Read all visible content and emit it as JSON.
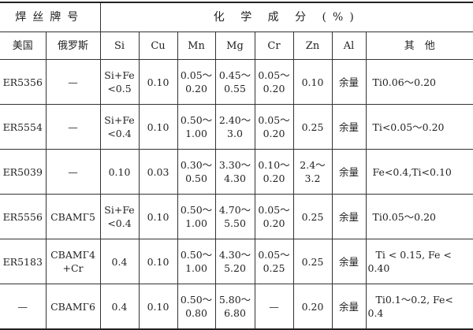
{
  "header": {
    "wire_grade": "焊丝牌号",
    "composition": "化 学 成 分 (%)",
    "columns": [
      "美国",
      "俄罗斯",
      "Si",
      "Cu",
      "Mn",
      "Mg",
      "Cr",
      "Zn",
      "Al",
      "其　他"
    ]
  },
  "rows": [
    [
      "ER5356",
      "—",
      "Si+Fe\n<0.5",
      "0.10",
      "0.05～\n0.20",
      "0.45～\n0.55",
      "0.05～\n0.20",
      "0.10",
      "余量",
      "Ti0.06～0.20"
    ],
    [
      "ER5554",
      "—",
      "Si+Fe\n<0.4",
      "0.10",
      "0.50～\n1.00",
      "2.40～\n3.0",
      "0.05～\n0.20",
      "0.25",
      "余量",
      "Ti<0.05～0.20"
    ],
    [
      "ER5039",
      "—",
      "0.10",
      "0.03",
      "0.30～\n0.50",
      "3.30～\n4.30",
      "0.10～\n0.20",
      "2.4～\n3.2",
      "余量",
      "Fe<0.4,Ti<0.10"
    ],
    [
      "ER5556",
      "CBAMГ5",
      "Si+Fe\n<0.4",
      "0.10",
      "0.50～\n1.00",
      "4.70～\n5.50",
      "0.05～\n0.20",
      "0.25",
      "余量",
      "Ti0.05～0.20"
    ],
    [
      "ER5183",
      "CBAMГ4\n+Cr",
      "0.4",
      "0.10",
      "0.50～\n1.00",
      "4.30～\n5.20",
      "0.05～\n0.25",
      "0.25",
      "余量",
      "Ti < 0.15, Fe < 0.40"
    ],
    [
      "—",
      "CBAMГ6",
      "0.4",
      "0.10",
      "0.50～\n0.80",
      "5.80～\n6.80",
      "—",
      "0.20",
      "余量",
      "Ti0.1～0.2, Fe< 0.4"
    ]
  ]
}
